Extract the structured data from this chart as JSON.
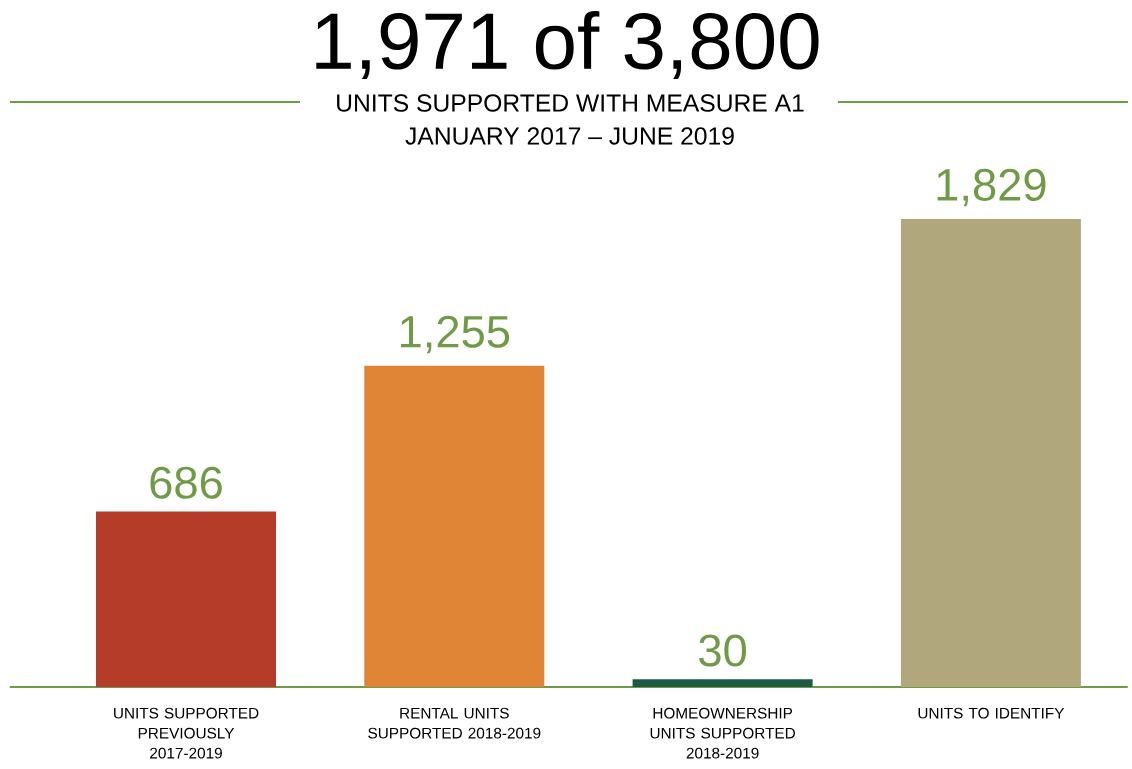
{
  "chart_data": {
    "type": "bar",
    "title": "1,971 of 3,800",
    "subtitle": "UNITS SUPPORTED WITH MEASURE A1",
    "annotations": [
      "JANUARY 2017 – JUNE 2019"
    ],
    "categories": [
      "UNITS SUPPORTED PREVIOUSLY 2017-2019",
      "RENTAL UNITS SUPPORTED 2018-2019",
      "HOMEOWNERSHIP UNITS SUPPORTED 2018-2019",
      "UNITS TO IDENTIFY"
    ],
    "values": [
      686,
      1255,
      30,
      1829
    ],
    "colors": [
      "#b53c28",
      "#e08436",
      "#1e5a41",
      "#b0a77c"
    ],
    "value_labels": [
      "686",
      "1,255",
      "30",
      "1,829"
    ]
  }
}
